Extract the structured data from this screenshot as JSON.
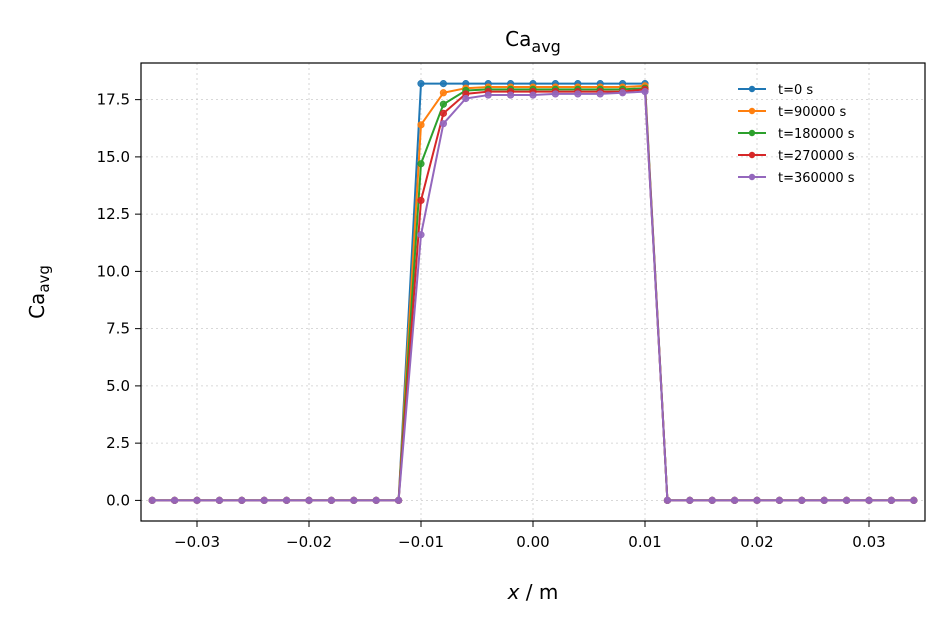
{
  "chart_data": {
    "type": "line",
    "title_main": "Ca",
    "title_sub": "avg",
    "xlabel_main": "x",
    "xlabel_unit": " / m",
    "ylabel_main": "Ca",
    "ylabel_sub": "avg",
    "xlim": [
      -0.035,
      0.035
    ],
    "ylim": [
      -0.9,
      19.1
    ],
    "xticks": [
      -0.03,
      -0.02,
      -0.01,
      0.0,
      0.01,
      0.02,
      0.03
    ],
    "xtick_labels": [
      "−0.03",
      "−0.02",
      "−0.01",
      "0.00",
      "0.01",
      "0.02",
      "0.03"
    ],
    "yticks": [
      0.0,
      2.5,
      5.0,
      7.5,
      10.0,
      12.5,
      15.0,
      17.5
    ],
    "ytick_labels": [
      "0.0",
      "2.5",
      "5.0",
      "7.5",
      "10.0",
      "12.5",
      "15.0",
      "17.5"
    ],
    "grid": true,
    "legend_position": "top-right",
    "x": [
      -0.034,
      -0.032,
      -0.03,
      -0.028,
      -0.026,
      -0.024,
      -0.022,
      -0.02,
      -0.018,
      -0.016,
      -0.014,
      -0.012,
      -0.01,
      -0.008,
      -0.006,
      -0.004,
      -0.002,
      0.0,
      0.002,
      0.004,
      0.006,
      0.008,
      0.01,
      0.012,
      0.014,
      0.016,
      0.018,
      0.02,
      0.022,
      0.024,
      0.026,
      0.028,
      0.03,
      0.032,
      0.034
    ],
    "series": [
      {
        "name": "t=0 s",
        "color": "#1f77b4",
        "values": [
          0,
          0,
          0,
          0,
          0,
          0,
          0,
          0,
          0,
          0,
          0,
          0,
          18.2,
          18.2,
          18.2,
          18.2,
          18.2,
          18.2,
          18.2,
          18.2,
          18.2,
          18.2,
          18.2,
          0,
          0,
          0,
          0,
          0,
          0,
          0,
          0,
          0,
          0,
          0,
          0
        ]
      },
      {
        "name": "t=90000 s",
        "color": "#ff7f0e",
        "values": [
          0,
          0,
          0,
          0,
          0,
          0,
          0,
          0,
          0,
          0,
          0,
          0,
          16.4,
          17.8,
          18.0,
          18.05,
          18.05,
          18.05,
          18.05,
          18.05,
          18.05,
          18.05,
          18.1,
          0,
          0,
          0,
          0,
          0,
          0,
          0,
          0,
          0,
          0,
          0,
          0
        ]
      },
      {
        "name": "t=180000 s",
        "color": "#2ca02c",
        "values": [
          0,
          0,
          0,
          0,
          0,
          0,
          0,
          0,
          0,
          0,
          0,
          0,
          14.7,
          17.3,
          17.9,
          17.95,
          17.95,
          17.95,
          17.95,
          17.95,
          17.95,
          17.95,
          18.0,
          0,
          0,
          0,
          0,
          0,
          0,
          0,
          0,
          0,
          0,
          0,
          0
        ]
      },
      {
        "name": "t=270000 s",
        "color": "#d62728",
        "values": [
          0,
          0,
          0,
          0,
          0,
          0,
          0,
          0,
          0,
          0,
          0,
          0,
          13.1,
          16.9,
          17.75,
          17.85,
          17.85,
          17.85,
          17.85,
          17.85,
          17.85,
          17.85,
          17.95,
          0,
          0,
          0,
          0,
          0,
          0,
          0,
          0,
          0,
          0,
          0,
          0
        ]
      },
      {
        "name": "t=360000 s",
        "color": "#9467bd",
        "values": [
          0,
          0,
          0,
          0,
          0,
          0,
          0,
          0,
          0,
          0,
          0,
          0,
          11.6,
          16.45,
          17.55,
          17.7,
          17.7,
          17.7,
          17.75,
          17.75,
          17.75,
          17.8,
          17.85,
          0,
          0,
          0,
          0,
          0,
          0,
          0,
          0,
          0,
          0,
          0,
          0
        ]
      }
    ]
  }
}
